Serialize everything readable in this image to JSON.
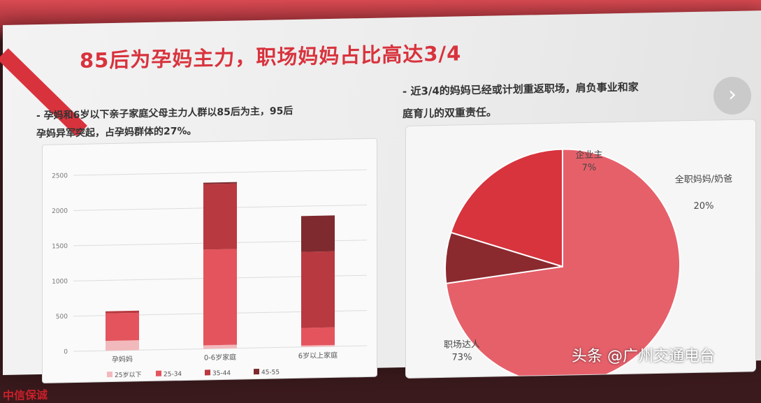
{
  "slide": {
    "title": "85后为孕妈主力，职场妈妈占比高达3/4",
    "left_bullet_line1": "- 孕妈和6岁以下亲子家庭父母主力人群以85后为主，95后",
    "left_bullet_line2": "孕妈异军突起，占孕妈群体的27%。",
    "right_bullet_line1": "- 近3/4的妈妈已经或计划重返职场，肩负事业和家",
    "right_bullet_line2": "庭育儿的双重责任。",
    "footer_logo": "中信保诚",
    "nav_icon": "chevron-right-icon",
    "watermark": "头条 @广州交通电台"
  },
  "chart_data": [
    {
      "type": "bar",
      "stacked": true,
      "categories": [
        "孕妈妈",
        "0-6岁家庭",
        "6岁以上家庭"
      ],
      "series": [
        {
          "name": "25岁以下",
          "values": [
            140,
            50,
            20
          ],
          "color": "#f2b9bc"
        },
        {
          "name": "25-34",
          "values": [
            390,
            1360,
            250
          ],
          "color": "#e4545d"
        },
        {
          "name": "35-44",
          "values": [
            30,
            930,
            1080
          ],
          "color": "#b8393f"
        },
        {
          "name": "45-55",
          "values": [
            0,
            20,
            510
          ],
          "color": "#7e2a2e"
        }
      ],
      "ylim": [
        0,
        2500
      ],
      "yticks": [
        0,
        500,
        1000,
        1500,
        2000,
        2500
      ],
      "grid": true,
      "legend": "bottom"
    },
    {
      "type": "pie",
      "slices": [
        {
          "label": "职场达人",
          "value": 73,
          "display": "73%",
          "color": "#e6606a"
        },
        {
          "label": "企业主",
          "value": 7,
          "display": "7%",
          "color": "#8a2a2e"
        },
        {
          "label": "全职妈妈/奶爸",
          "value": 20,
          "display": "20%",
          "color": "#d7343e"
        }
      ]
    }
  ]
}
